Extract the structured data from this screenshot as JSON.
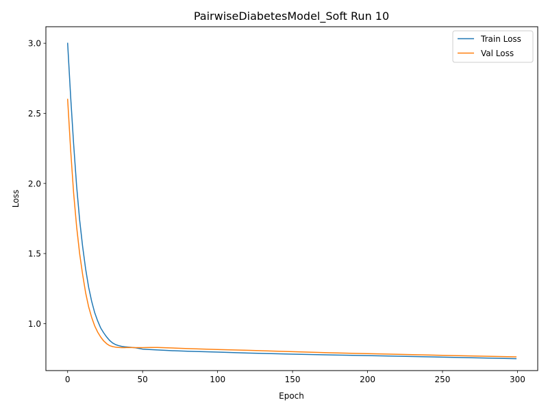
{
  "chart_data": {
    "type": "line",
    "title": "PairwiseDiabetesModel_Soft Run 10",
    "xlabel": "Epoch",
    "ylabel": "Loss",
    "xlim": [
      -14.5,
      313.5
    ],
    "ylim": [
      0.665,
      3.118
    ],
    "xticks": [
      0,
      50,
      100,
      150,
      200,
      250,
      300
    ],
    "yticks": [
      1.0,
      1.5,
      2.0,
      2.5,
      3.0
    ],
    "ytick_labels": [
      "1.0",
      "1.5",
      "2.0",
      "2.5",
      "3.0"
    ],
    "grid": false,
    "legend_position": "top-right",
    "series": [
      {
        "name": "Train Loss",
        "color": "#1f77b4",
        "x": [
          0,
          2,
          4,
          6,
          8,
          10,
          12,
          14,
          16,
          18,
          20,
          22,
          24,
          26,
          28,
          30,
          32,
          34,
          36,
          38,
          40,
          45,
          50,
          60,
          70,
          80,
          100,
          120,
          150,
          175,
          200,
          250,
          299
        ],
        "y": [
          3.0,
          2.62,
          2.28,
          1.98,
          1.74,
          1.55,
          1.39,
          1.26,
          1.16,
          1.08,
          1.02,
          0.97,
          0.935,
          0.905,
          0.88,
          0.862,
          0.85,
          0.843,
          0.838,
          0.835,
          0.833,
          0.828,
          0.818,
          0.812,
          0.807,
          0.803,
          0.797,
          0.79,
          0.782,
          0.777,
          0.772,
          0.761,
          0.75
        ]
      },
      {
        "name": "Val Loss",
        "color": "#ff7f0e",
        "x": [
          0,
          2,
          4,
          6,
          8,
          10,
          12,
          14,
          16,
          18,
          20,
          22,
          24,
          26,
          28,
          30,
          32,
          34,
          36,
          38,
          40,
          45,
          50,
          55,
          60,
          70,
          80,
          100,
          120,
          150,
          175,
          200,
          250,
          299
        ],
        "y": [
          2.6,
          2.24,
          1.93,
          1.69,
          1.5,
          1.35,
          1.22,
          1.12,
          1.045,
          0.985,
          0.94,
          0.905,
          0.877,
          0.857,
          0.843,
          0.836,
          0.832,
          0.83,
          0.829,
          0.829,
          0.83,
          0.829,
          0.829,
          0.83,
          0.83,
          0.826,
          0.822,
          0.815,
          0.81,
          0.8,
          0.792,
          0.786,
          0.774,
          0.763
        ]
      }
    ]
  }
}
